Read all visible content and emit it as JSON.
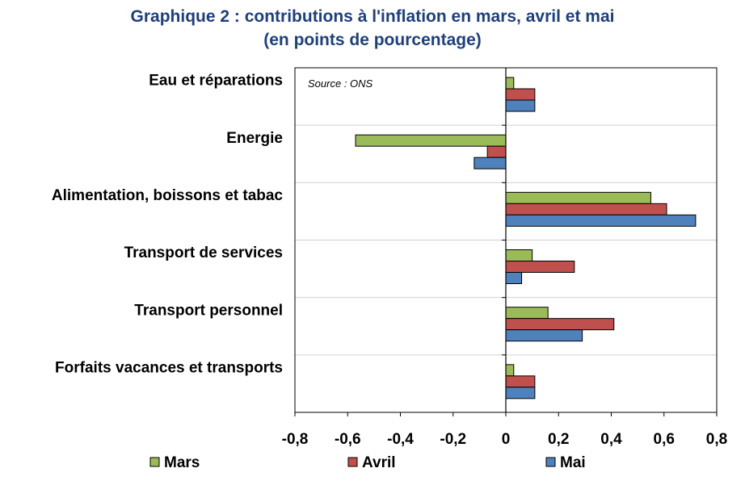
{
  "title_line1": "Graphique 2 : contributions à l'inflation en mars, avril et mai",
  "title_line2": "(en points de pourcentage)",
  "source_note": "Source : ONS",
  "chart_data": {
    "type": "bar",
    "orientation": "horizontal",
    "title": "Graphique 2 : contributions à l'inflation en mars, avril et mai (en points de pourcentage)",
    "categories": [
      "Eau et réparations",
      "Energie",
      "Alimentation, boissons et tabac",
      "Transport de services",
      "Transport personnel",
      "Forfaits vacances et transports"
    ],
    "series": [
      {
        "name": "Mars",
        "color": "#9bbb59",
        "values": [
          0.03,
          -0.57,
          0.55,
          0.1,
          0.16,
          0.03
        ]
      },
      {
        "name": "Avril",
        "color": "#c0504d",
        "values": [
          0.11,
          -0.07,
          0.61,
          0.26,
          0.41,
          0.11
        ]
      },
      {
        "name": "Mai",
        "color": "#4f81bd",
        "values": [
          0.11,
          -0.12,
          0.72,
          0.06,
          0.29,
          0.11
        ]
      }
    ],
    "xlim": [
      -0.8,
      0.8
    ],
    "xticks": [
      -0.8,
      -0.6,
      -0.4,
      -0.2,
      0,
      0.2,
      0.4,
      0.6,
      0.8
    ],
    "xtick_labels": [
      "-0,8",
      "-0,6",
      "-0,4",
      "-0,2",
      "0",
      "0,2",
      "0,4",
      "0,6",
      "0,8"
    ],
    "grid": "horizontal",
    "legend_position": "bottom"
  }
}
